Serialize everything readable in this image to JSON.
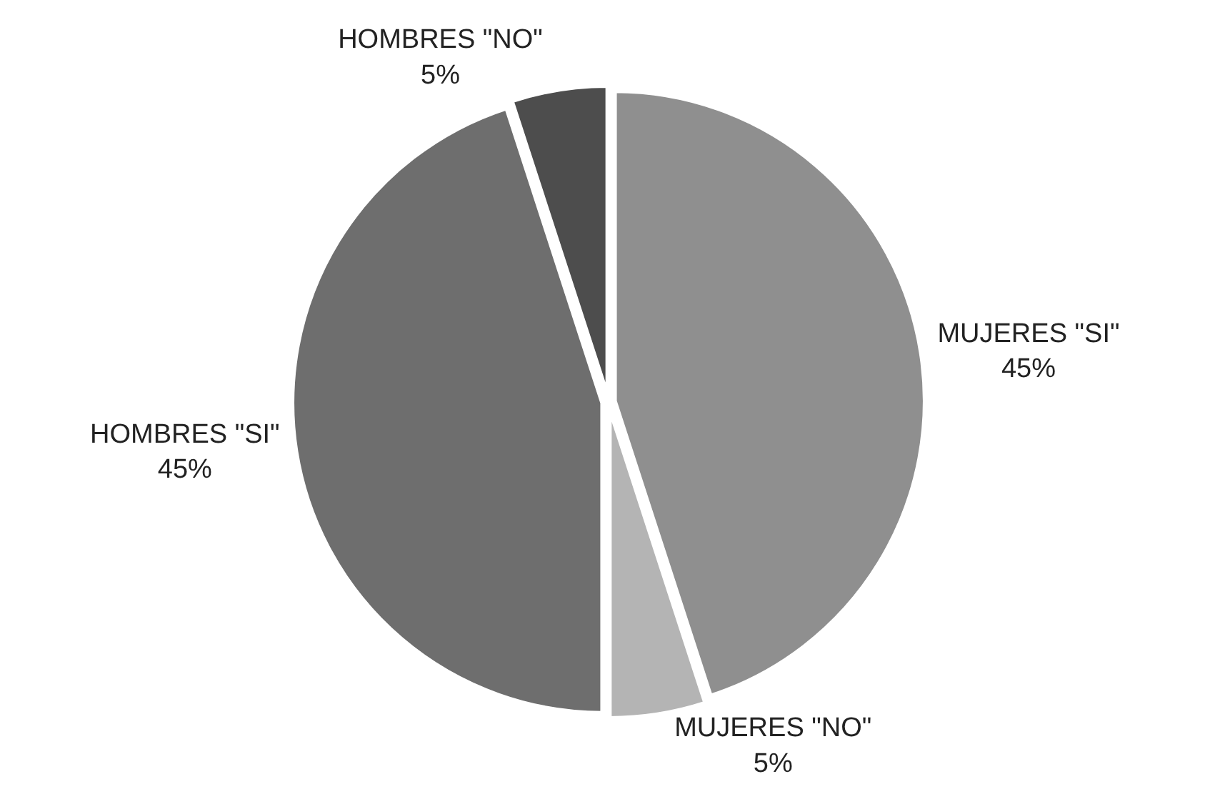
{
  "chart_data": {
    "type": "pie",
    "categories": [
      "MUJERES \"SI\"",
      "MUJERES \"NO\"",
      "HOMBRES \"SI\"",
      "HOMBRES \"NO\""
    ],
    "values": [
      45,
      5,
      45,
      5
    ],
    "value_labels": [
      "45%",
      "5%",
      "45%",
      "5%"
    ],
    "colors": [
      "#8f8f8f",
      "#b4b4b4",
      "#6e6e6e",
      "#4d4d4d"
    ],
    "legend": false
  }
}
